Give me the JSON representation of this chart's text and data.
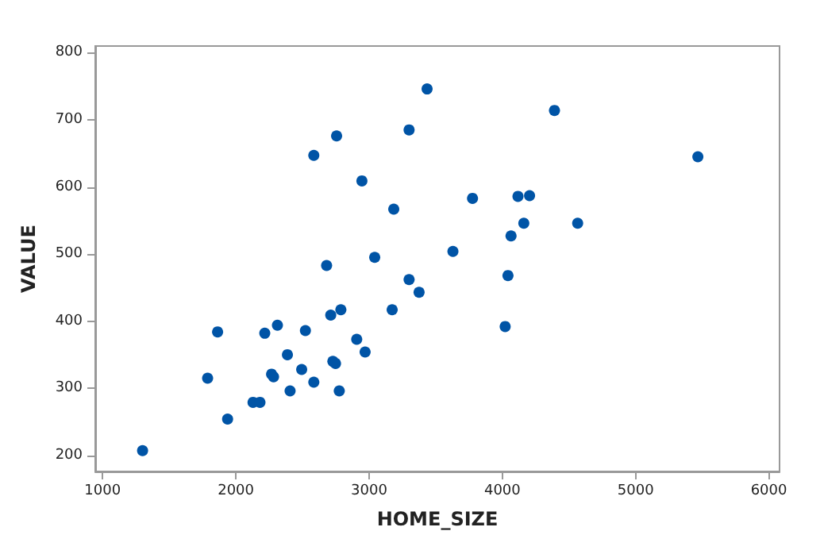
{
  "chart_data": {
    "type": "scatter",
    "xlabel": "HOME_SIZE",
    "ylabel": "VALUE",
    "x": [
      1300,
      1788,
      1863,
      1938,
      2129,
      2181,
      2217,
      2268,
      2283,
      2312,
      2387,
      2407,
      2494,
      2522,
      2585,
      2585,
      2681,
      2712,
      2728,
      2748,
      2756,
      2776,
      2788,
      2907,
      2946,
      2970,
      3042,
      3173,
      3185,
      3300,
      3300,
      3375,
      3435,
      3629,
      3776,
      4021,
      4042,
      4065,
      4117,
      4204,
      4161,
      4391,
      4565,
      5467
    ],
    "series": [
      {
        "color": "#0054a6",
        "values": [
          207,
          315,
          384,
          254,
          279,
          279,
          382,
          321,
          317,
          394,
          350,
          296,
          328,
          386,
          309,
          647,
          483,
          409,
          340,
          337,
          676,
          296,
          417,
          373,
          609,
          354,
          495,
          417,
          567,
          462,
          685,
          443,
          746,
          504,
          583,
          392,
          468,
          527,
          586,
          587,
          546,
          714,
          546,
          645
        ]
      }
    ],
    "xlim": [
      945,
      6080
    ],
    "ylim": [
      176,
      810
    ],
    "xticks": [
      1000,
      2000,
      3000,
      4000,
      5000,
      6000
    ],
    "yticks": [
      200,
      300,
      400,
      500,
      600,
      700,
      800
    ],
    "grid": false,
    "marker": "circle"
  }
}
